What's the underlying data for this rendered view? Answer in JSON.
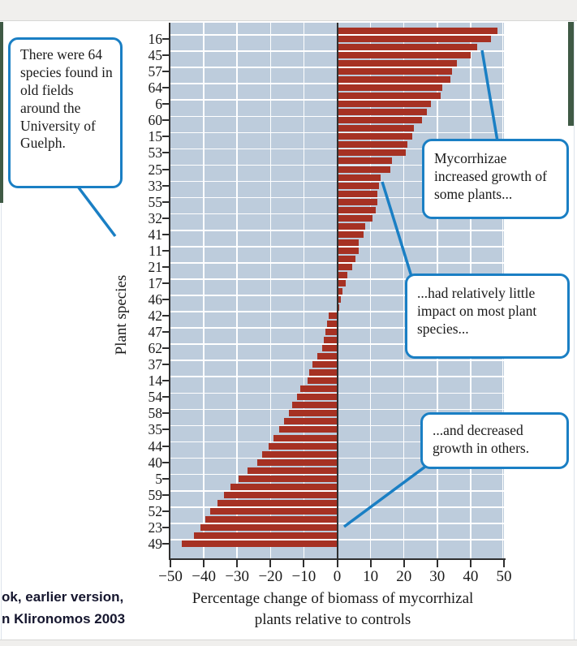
{
  "caption": {
    "line1": "ok, earlier version,",
    "line2": "n Klironomos 2003"
  },
  "callouts": [
    {
      "id": "species-count",
      "text": "There were 64 species found in old fields around the University of Guelph."
    },
    {
      "id": "increased-growth",
      "text": "Mycorrhizae increased growth of some plants..."
    },
    {
      "id": "little-impact",
      "text": "...had relatively little impact on most plant species..."
    },
    {
      "id": "decreased-growth",
      "text": "...and decreased growth in others."
    }
  ],
  "chart_data": {
    "type": "bar",
    "orientation": "horizontal",
    "title": "",
    "xlabel_line1": "Percentage change of biomass of mycorrhizal",
    "xlabel_line2": "plants relative to controls",
    "ylabel": "Plant species",
    "xlim": [
      -50,
      50
    ],
    "grid": true,
    "x_ticks": [
      -50,
      -40,
      -30,
      -20,
      -10,
      0,
      10,
      20,
      30,
      40,
      50
    ],
    "x_tick_labels": [
      "−50",
      "−40",
      "−30",
      "−20",
      "−10",
      "0",
      "10",
      "20",
      "30",
      "40",
      "50"
    ],
    "y_tick_labels": [
      "16",
      "45",
      "57",
      "64",
      "6",
      "60",
      "15",
      "53",
      "25",
      "33",
      "55",
      "32",
      "41",
      "11",
      "21",
      "17",
      "46",
      "42",
      "47",
      "62",
      "37",
      "14",
      "54",
      "58",
      "35",
      "44",
      "40",
      "5",
      "59",
      "52",
      "23",
      "49"
    ],
    "y_tick_note": "labels mark every second of 64 species bars, ordered from largest increase to largest decrease",
    "series": [
      {
        "name": "Percent change of biomass vs controls",
        "values": [
          48,
          46,
          42,
          40,
          36,
          34.5,
          34,
          31.5,
          31,
          28,
          27,
          25.5,
          23,
          22.5,
          21,
          20.5,
          16.5,
          16,
          13,
          12.5,
          12,
          12,
          11.5,
          10.5,
          8.5,
          8,
          6.5,
          6.5,
          5.5,
          4.5,
          3,
          2.5,
          1.5,
          1,
          0.5,
          -2.5,
          -3,
          -3.5,
          -4,
          -4.5,
          -6,
          -7.5,
          -8.5,
          -9,
          -11,
          -12,
          -13.5,
          -14.5,
          -16,
          -17.5,
          -19,
          -20.5,
          -22.5,
          -24,
          -27,
          -29.5,
          -32,
          -34,
          -36,
          -38,
          -39.5,
          -41,
          -43,
          -46.5
        ]
      }
    ]
  },
  "colors": {
    "bar_red": "#a63123",
    "plot_bg": "#bdccdc",
    "gridline": "#ffffff",
    "callout_blue": "#1a7fc4",
    "page_edge_green": "#3f5a45",
    "axis_dark": "#2f2f2f"
  }
}
